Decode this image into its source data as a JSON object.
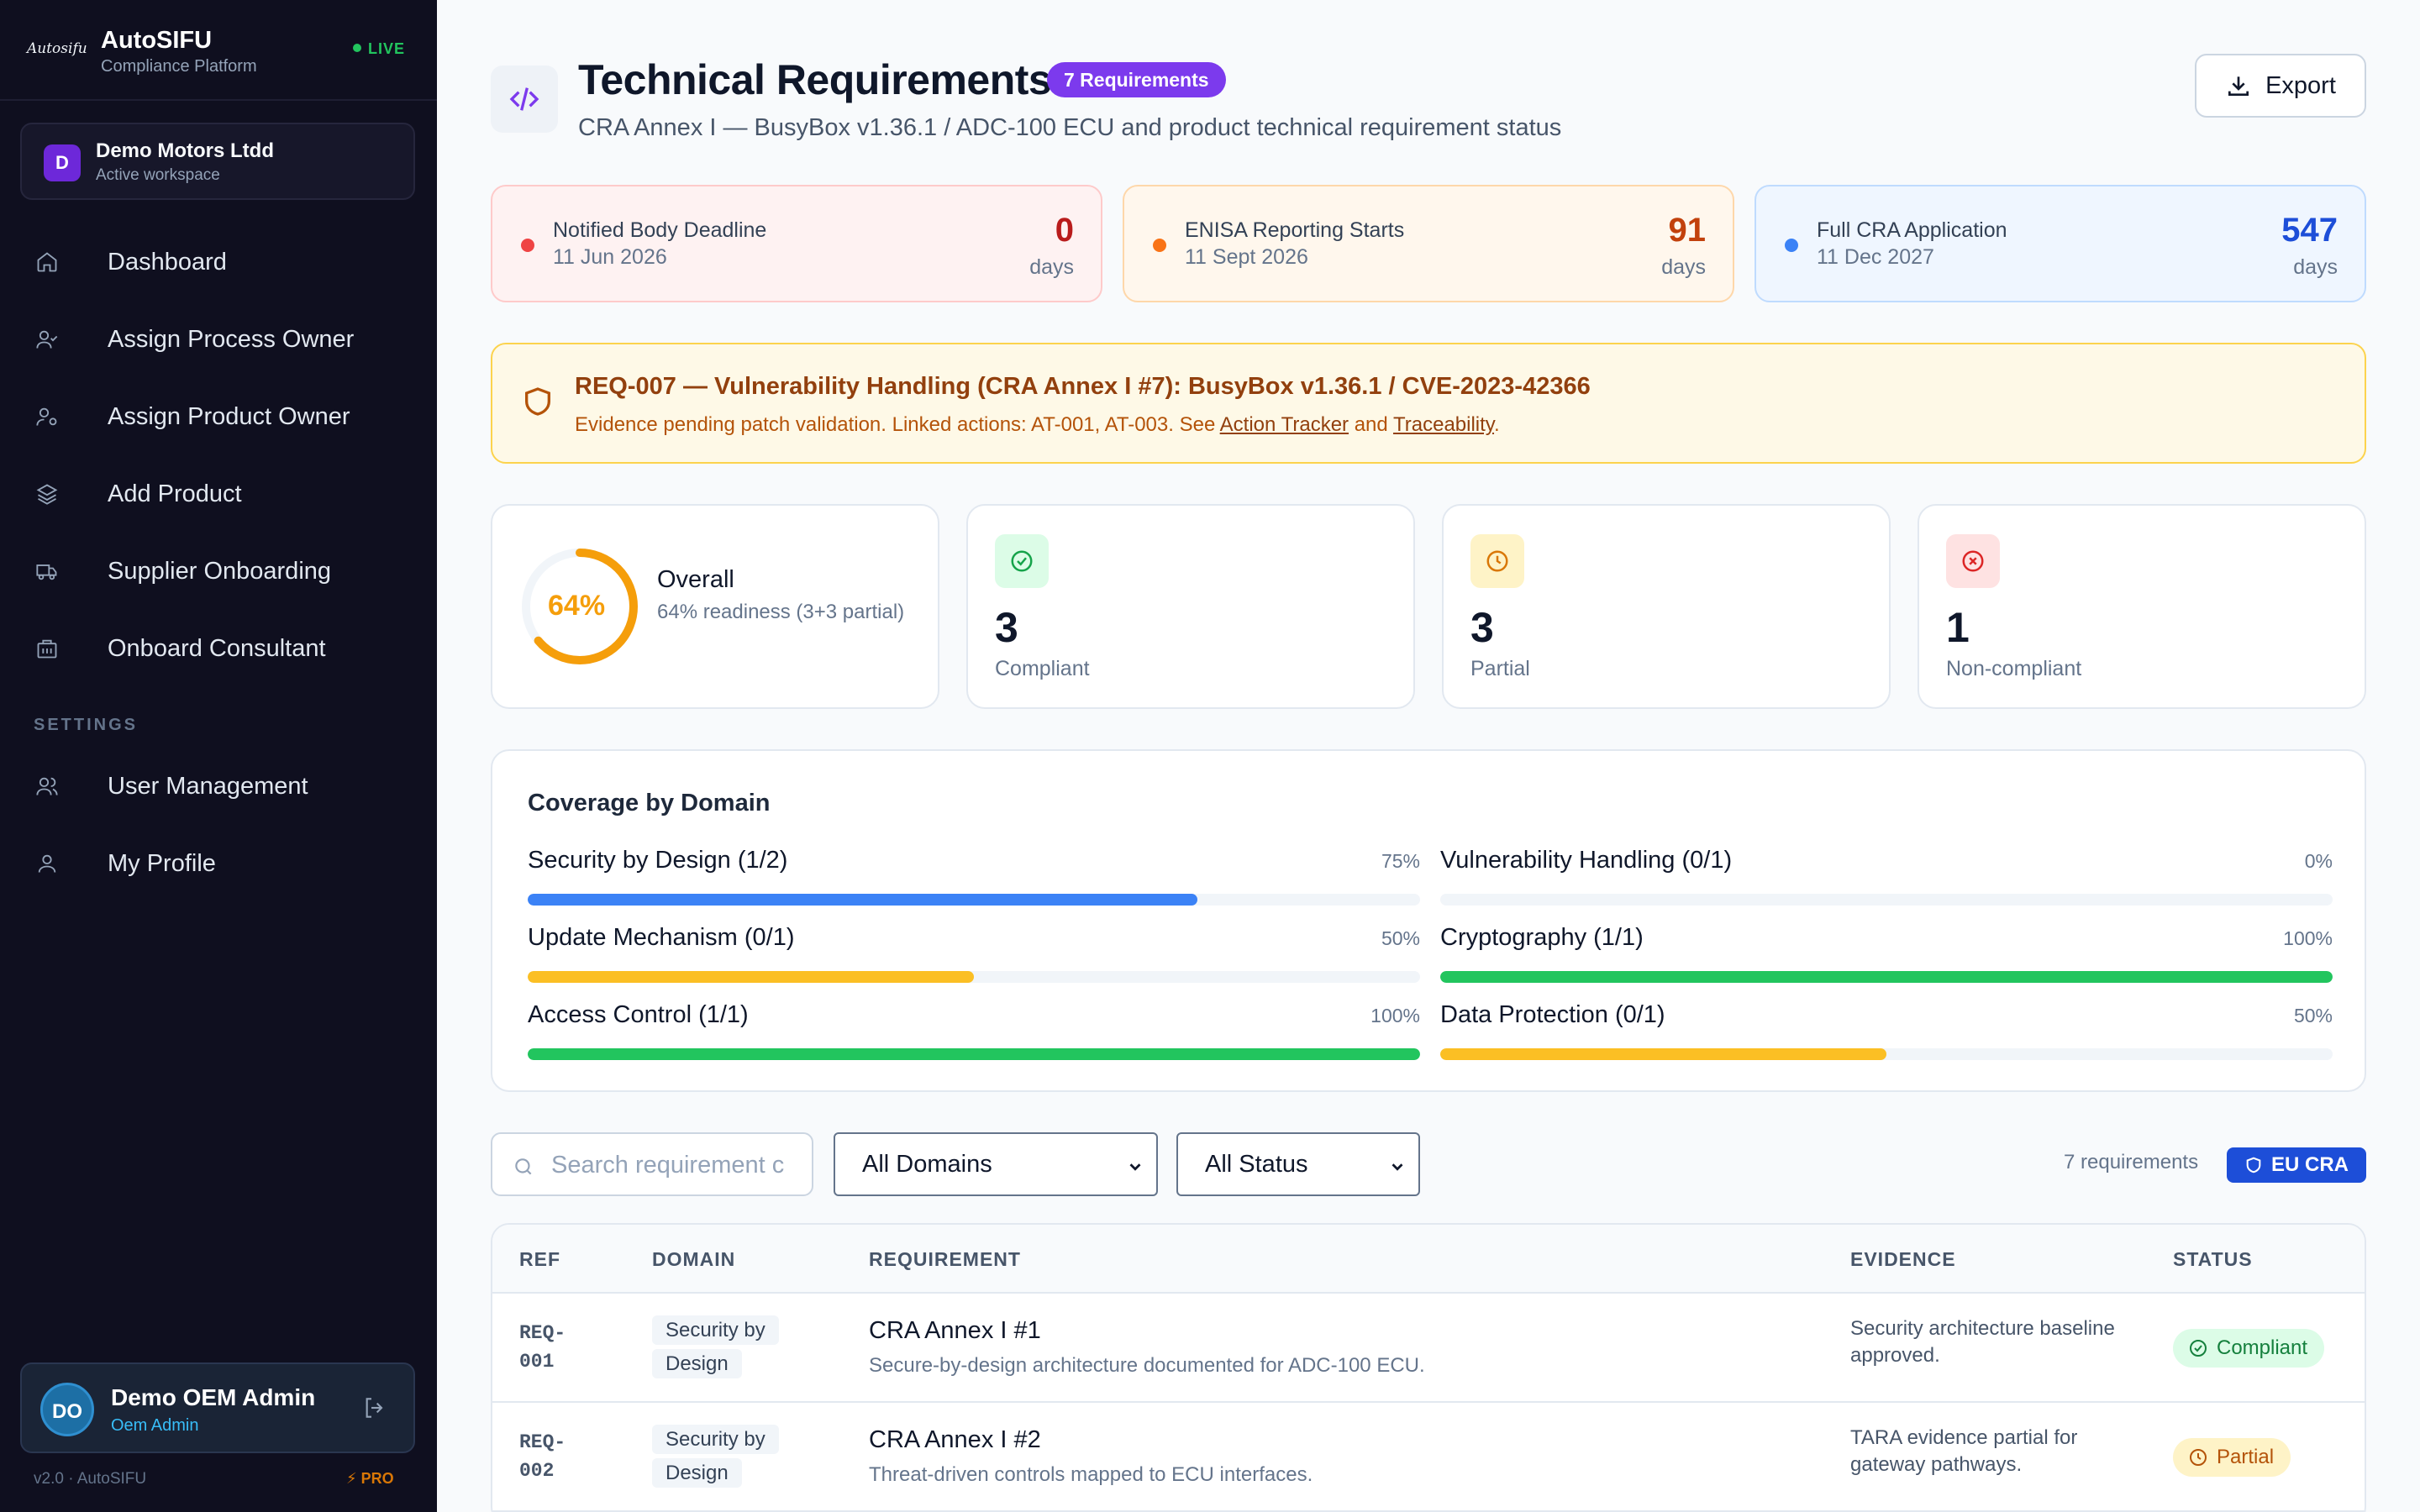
{
  "brand": {
    "logo_text": "Autosifu",
    "name": "AutoSIFU",
    "subtitle": "Compliance Platform",
    "live": "LIVE"
  },
  "workspace": {
    "initial": "D",
    "name": "Demo Motors Ltdd",
    "sub": "Active workspace"
  },
  "nav": {
    "items": [
      {
        "label": "Dashboard",
        "icon": "home-icon"
      },
      {
        "label": "Assign Process Owner",
        "icon": "user-check-icon"
      },
      {
        "label": "Assign Product Owner",
        "icon": "user-cog-icon"
      },
      {
        "label": "Add Product",
        "icon": "layers-icon"
      },
      {
        "label": "Supplier Onboarding",
        "icon": "truck-icon"
      },
      {
        "label": "Onboard Consultant",
        "icon": "building-icon"
      }
    ],
    "settings_heading": "SETTINGS",
    "settings_items": [
      {
        "label": "User Management",
        "icon": "users-icon"
      },
      {
        "label": "My Profile",
        "icon": "user-icon"
      }
    ]
  },
  "user": {
    "initials": "DO",
    "name": "Demo OEM Admin",
    "role": "Oem Admin"
  },
  "footer": {
    "version": "v2.0 · AutoSIFU",
    "plan": "PRO"
  },
  "header": {
    "title": "Technical Requirements",
    "badge": "7 Requirements",
    "subtitle": "CRA Annex I — BusyBox v1.36.1 / ADC-100 ECU and product technical requirement status",
    "export_label": "Export"
  },
  "deadlines": [
    {
      "title": "Notified Body Deadline",
      "date": "11 Jun 2026",
      "value": "0",
      "unit": "days",
      "color": "#ef4444"
    },
    {
      "title": "ENISA Reporting Starts",
      "date": "11 Sept 2026",
      "value": "91",
      "unit": "days",
      "color": "#f97316"
    },
    {
      "title": "Full CRA Application",
      "date": "11 Dec 2027",
      "value": "547",
      "unit": "days",
      "color": "#3b82f6"
    }
  ],
  "alert": {
    "title": "REQ-007 — Vulnerability Handling (CRA Annex I #7): BusyBox v1.36.1 / CVE-2023-42366",
    "text_before": "Evidence pending patch validation. Linked actions: AT-001, AT-003. See ",
    "link1": "Action Tracker",
    "text_mid": " and ",
    "link2": "Traceability",
    "text_after": "."
  },
  "overall": {
    "percent_label": "64%",
    "percent": 64,
    "title": "Overall",
    "sub": "64% readiness (3+3 partial)"
  },
  "stats": [
    {
      "value": "3",
      "label": "Compliant",
      "icon": "check-circle-icon"
    },
    {
      "value": "3",
      "label": "Partial",
      "icon": "clock-icon"
    },
    {
      "value": "1",
      "label": "Non-compliant",
      "icon": "x-circle-icon"
    }
  ],
  "coverage": {
    "title": "Coverage by Domain",
    "items": [
      {
        "label": "Security by Design (1/2)",
        "pct_label": "75%",
        "pct": 75,
        "color": "#3b82f6"
      },
      {
        "label": "Vulnerability Handling (0/1)",
        "pct_label": "0%",
        "pct": 0,
        "color": "#ef4444"
      },
      {
        "label": "Update Mechanism (0/1)",
        "pct_label": "50%",
        "pct": 50,
        "color": "#fbbf24"
      },
      {
        "label": "Cryptography (1/1)",
        "pct_label": "100%",
        "pct": 100,
        "color": "#22c55e"
      },
      {
        "label": "Access Control (1/1)",
        "pct_label": "100%",
        "pct": 100,
        "color": "#22c55e"
      },
      {
        "label": "Data Protection (0/1)",
        "pct_label": "50%",
        "pct": 50,
        "color": "#fbbf24"
      }
    ]
  },
  "filters": {
    "search_placeholder": "Search requirement c",
    "domain": "All Domains",
    "status": "All Status",
    "count_text": "7 requirements",
    "region_badge": "EU CRA"
  },
  "table": {
    "headers": {
      "ref": "REF",
      "domain": "DOMAIN",
      "requirement": "REQUIREMENT",
      "evidence": "EVIDENCE",
      "status": "STATUS"
    },
    "rows": [
      {
        "ref": "REQ-001",
        "domain": "Security by Design",
        "title": "CRA Annex I #1",
        "desc": "Secure-by-design architecture documented for ADC-100 ECU.",
        "evidence": "Security architecture baseline approved.",
        "status": "Compliant"
      },
      {
        "ref": "REQ-002",
        "domain": "Security by Design",
        "title": "CRA Annex I #2",
        "desc": "Threat-driven controls mapped to ECU interfaces.",
        "evidence": "TARA evidence partial for gateway pathways.",
        "status": "Partial"
      }
    ]
  }
}
